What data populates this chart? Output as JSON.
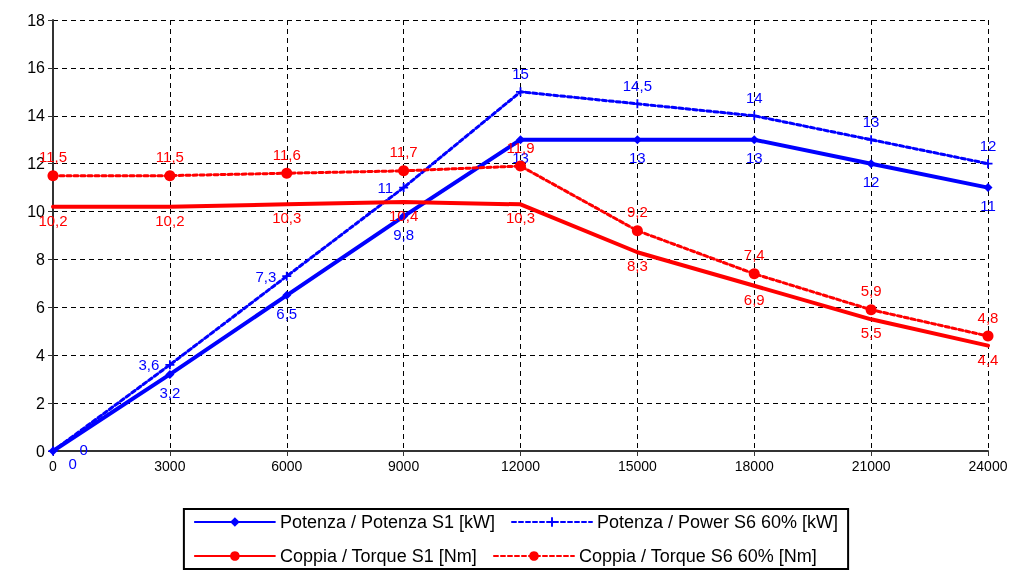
{
  "chart_data": {
    "type": "line",
    "x": [
      0,
      3000,
      6000,
      9000,
      12000,
      15000,
      18000,
      21000,
      24000
    ],
    "xlim": [
      0,
      24000
    ],
    "xticks": [
      0,
      3000,
      6000,
      9000,
      12000,
      15000,
      18000,
      21000,
      24000
    ],
    "ylim": [
      0,
      18
    ],
    "yticks": [
      0,
      2,
      4,
      6,
      8,
      10,
      12,
      14,
      16,
      18
    ],
    "grid": true,
    "legend": "bottom",
    "series": [
      {
        "name": "Potenza / Potenza S1 [kW]",
        "color": "#0000ff",
        "marker": "diamond",
        "line_style": "solid",
        "values": [
          0,
          3.2,
          6.5,
          9.8,
          13,
          13,
          13,
          12,
          11
        ],
        "value_labels": [
          "0",
          "3,2",
          "6,5",
          "9,8",
          "13",
          "13",
          "13",
          "12",
          "11"
        ]
      },
      {
        "name": "Potenza / Power S6 60% [kW]",
        "color": "#0000ff",
        "marker": "cross",
        "line_style": "dashed",
        "values": [
          0,
          3.6,
          7.3,
          11,
          15,
          14.5,
          14,
          13,
          12
        ],
        "value_labels": [
          "0",
          "3,6",
          "7,3",
          "11",
          "15",
          "14,5",
          "14",
          "13",
          "12"
        ]
      },
      {
        "name": "Coppia / Torque S1 [Nm]",
        "color": "#ff0000",
        "marker": "none",
        "line_style": "solid",
        "values": [
          10.2,
          10.2,
          10.3,
          10.4,
          10.3,
          8.3,
          6.9,
          5.5,
          4.4
        ],
        "value_labels": [
          "10,2",
          "10,2",
          "10,3",
          "10,4",
          "10,3",
          "8,3",
          "6,9",
          "5,5",
          "4,4"
        ]
      },
      {
        "name": "Coppia / Torque S6 60% [Nm]",
        "color": "#ff0000",
        "marker": "circle",
        "line_style": "dashed",
        "values": [
          11.5,
          11.5,
          11.6,
          11.7,
          11.9,
          9.2,
          7.4,
          5.9,
          4.8
        ],
        "value_labels": [
          "11,5",
          "11,5",
          "11,6",
          "11,7",
          "11,9",
          "9,2",
          "7,4",
          "5,9",
          "4,8"
        ]
      }
    ]
  }
}
